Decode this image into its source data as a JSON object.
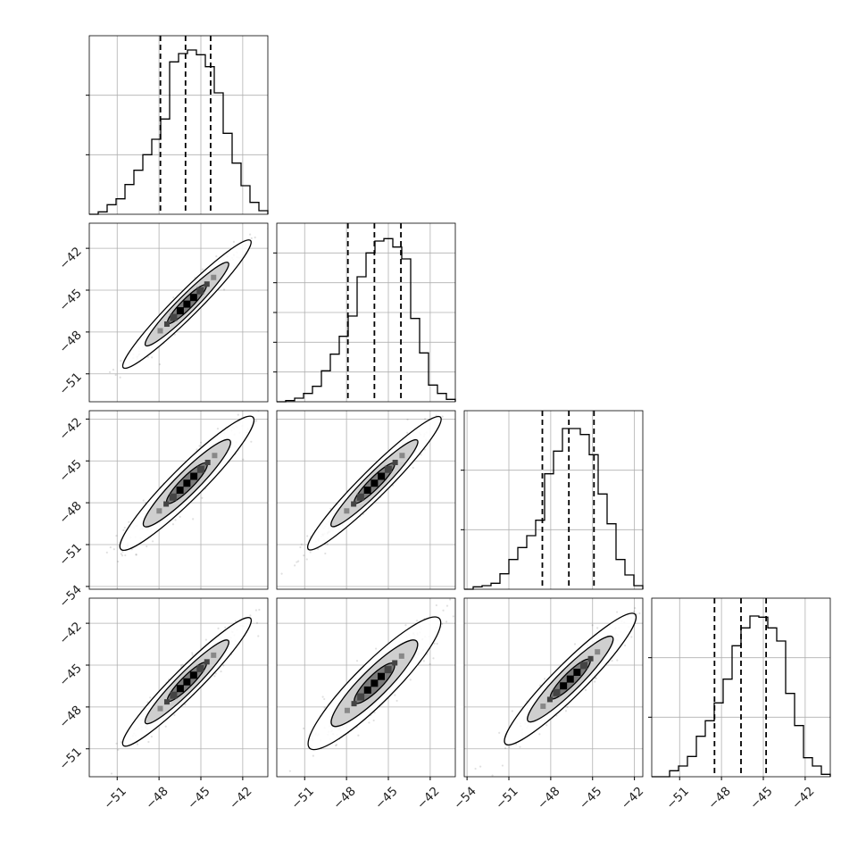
{
  "chart_data": {
    "type": "corner",
    "n_params": 4,
    "title": "",
    "grid": true,
    "quantile_lines": "dashed",
    "marginal_histograms": [
      {
        "param_index": 0,
        "xlim": [
          -53.0,
          -40.2
        ],
        "ylim": [
          0,
          0.015
        ],
        "bin_edges": [
          -53.0,
          -52.36,
          -51.72,
          -51.08,
          -50.44,
          -49.8,
          -49.16,
          -48.52,
          -47.88,
          -47.24,
          -46.6,
          -45.96,
          -45.32,
          -44.68,
          -44.04,
          -43.4,
          -42.76,
          -42.12,
          -41.48,
          -40.84,
          -40.2
        ],
        "density": [
          0.0,
          0.0002,
          0.0008,
          0.0013,
          0.0025,
          0.0037,
          0.005,
          0.0063,
          0.008,
          0.0128,
          0.0135,
          0.0138,
          0.0134,
          0.0124,
          0.0102,
          0.0068,
          0.0043,
          0.0024,
          0.001,
          0.0003
        ],
        "quantiles": [
          -47.9,
          -46.1,
          -44.3
        ],
        "yticks": [
          0.005,
          0.01
        ]
      },
      {
        "param_index": 1,
        "xlim": [
          -53.0,
          -40.2
        ],
        "ylim": [
          0,
          0.015
        ],
        "bin_edges": [
          -53.0,
          -52.36,
          -51.72,
          -51.08,
          -50.44,
          -49.8,
          -49.16,
          -48.52,
          -47.88,
          -47.24,
          -46.6,
          -45.96,
          -45.32,
          -44.68,
          -44.04,
          -43.4,
          -42.76,
          -42.12,
          -41.48,
          -40.84,
          -40.2
        ],
        "density": [
          0.0,
          0.0001,
          0.0003,
          0.0007,
          0.0013,
          0.0026,
          0.004,
          0.0055,
          0.0072,
          0.0105,
          0.0125,
          0.0135,
          0.0137,
          0.013,
          0.012,
          0.007,
          0.0041,
          0.0014,
          0.0007,
          0.0002
        ],
        "quantiles": [
          -47.9,
          -46.0,
          -44.1
        ],
        "yticks": [
          0.0025,
          0.005,
          0.0075,
          0.01,
          0.0125
        ]
      },
      {
        "param_index": 2,
        "xlim": [
          -54.2,
          -41.4
        ],
        "ylim": [
          0,
          0.015
        ],
        "bin_edges": [
          -54.2,
          -53.56,
          -52.92,
          -52.28,
          -51.64,
          -51.0,
          -50.36,
          -49.72,
          -49.08,
          -48.44,
          -47.8,
          -47.16,
          -46.52,
          -45.88,
          -45.24,
          -44.6,
          -43.96,
          -43.32,
          -42.68,
          -42.04,
          -41.4
        ],
        "density": [
          0.0,
          0.0002,
          0.0003,
          0.0005,
          0.0013,
          0.0025,
          0.0035,
          0.0045,
          0.0058,
          0.0097,
          0.0116,
          0.0135,
          0.0135,
          0.013,
          0.0113,
          0.008,
          0.0055,
          0.0025,
          0.0012,
          0.0003
        ],
        "quantiles": [
          -48.6,
          -46.7,
          -44.9
        ],
        "yticks": [
          0.005,
          0.01
        ]
      },
      {
        "param_index": 3,
        "xlim": [
          -53.0,
          -40.2
        ],
        "ylim": [
          0,
          0.015
        ],
        "bin_edges": [
          -53.0,
          -52.36,
          -51.72,
          -51.08,
          -50.44,
          -49.8,
          -49.16,
          -48.52,
          -47.88,
          -47.24,
          -46.6,
          -45.96,
          -45.32,
          -44.68,
          -44.04,
          -43.4,
          -42.76,
          -42.12,
          -41.48,
          -40.84,
          -40.2
        ],
        "density": [
          0.0,
          0.0,
          0.0005,
          0.0009,
          0.0017,
          0.0034,
          0.0047,
          0.0062,
          0.0082,
          0.011,
          0.0125,
          0.0135,
          0.0134,
          0.0125,
          0.0114,
          0.007,
          0.0043,
          0.0016,
          0.0009,
          0.0002
        ],
        "quantiles": [
          -48.5,
          -46.6,
          -44.8
        ],
        "yticks": [
          0.005,
          0.01
        ]
      }
    ],
    "pair_plots": [
      {
        "x_param": 0,
        "y_param": 1,
        "xlim": [
          -53.0,
          -40.2
        ],
        "ylim": [
          -53.0,
          -40.2
        ],
        "center": [
          -46.0,
          -46.0
        ],
        "slope": 1.0,
        "major_sd": 5.2,
        "minor_sd": 0.4
      },
      {
        "x_param": 0,
        "y_param": 2,
        "xlim": [
          -53.0,
          -40.2
        ],
        "ylim": [
          -54.2,
          -41.4
        ],
        "center": [
          -46.0,
          -46.6
        ],
        "slope": 1.0,
        "major_sd": 5.4,
        "minor_sd": 0.55
      },
      {
        "x_param": 1,
        "y_param": 2,
        "xlim": [
          -53.0,
          -40.2
        ],
        "ylim": [
          -54.2,
          -41.4
        ],
        "center": [
          -46.0,
          -46.6
        ],
        "slope": 1.0,
        "major_sd": 5.4,
        "minor_sd": 0.45
      },
      {
        "x_param": 0,
        "y_param": 3,
        "xlim": [
          -53.0,
          -40.2
        ],
        "ylim": [
          -53.0,
          -40.2
        ],
        "center": [
          -46.0,
          -46.2
        ],
        "slope": 1.0,
        "major_sd": 5.2,
        "minor_sd": 0.45
      },
      {
        "x_param": 1,
        "y_param": 3,
        "xlim": [
          -53.0,
          -40.2
        ],
        "ylim": [
          -53.0,
          -40.2
        ],
        "center": [
          -46.0,
          -46.3
        ],
        "slope": 1.0,
        "major_sd": 5.3,
        "minor_sd": 0.7
      },
      {
        "x_param": 2,
        "y_param": 3,
        "xlim": [
          -54.2,
          -41.4
        ],
        "ylim": [
          -53.0,
          -40.2
        ],
        "center": [
          -46.6,
          -46.0
        ],
        "slope": 1.0,
        "major_sd": 5.3,
        "minor_sd": 0.55
      }
    ],
    "x_tick_labels": [
      [
        "−51",
        "−48",
        "−45",
        "−42"
      ],
      [
        "−51",
        "−48",
        "−45",
        "−42"
      ],
      [
        "−54",
        "−51",
        "−48",
        "−45",
        "−42"
      ],
      [
        "−51",
        "−48",
        "−45",
        "−42"
      ]
    ],
    "y_tick_labels": [
      [],
      [
        "−42",
        "−45",
        "−48",
        "−51"
      ],
      [
        "−42",
        "−45",
        "−48",
        "−51",
        "−54"
      ],
      [
        "−42",
        "−45",
        "−48",
        "−51"
      ]
    ],
    "x_tick_values": [
      [
        -51,
        -48,
        -45,
        -42
      ],
      [
        -51,
        -48,
        -45,
        -42
      ],
      [
        -54,
        -51,
        -48,
        -45,
        -42
      ],
      [
        -51,
        -48,
        -45,
        -42
      ]
    ],
    "y_tick_values": [
      [],
      [
        -42,
        -45,
        -48,
        -51
      ],
      [
        -42,
        -45,
        -48,
        -51,
        -54
      ],
      [
        -42,
        -45,
        -48,
        -51
      ]
    ]
  }
}
